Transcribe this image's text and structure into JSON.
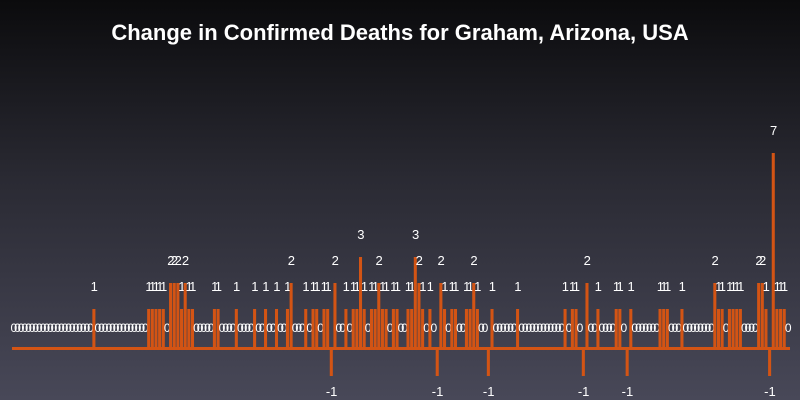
{
  "chart_data": {
    "type": "bar",
    "title": "Change in Confirmed Deaths for Graham, Arizona, USA",
    "xlabel": "",
    "ylabel": "",
    "ylim": [
      -1,
      7
    ],
    "grid": false,
    "legend": "none",
    "bar_color": "#d35414",
    "values": [
      0,
      0,
      0,
      0,
      0,
      0,
      0,
      0,
      0,
      0,
      0,
      0,
      0,
      0,
      0,
      0,
      0,
      0,
      0,
      0,
      0,
      0,
      1,
      0,
      0,
      0,
      0,
      0,
      0,
      0,
      0,
      0,
      0,
      0,
      0,
      0,
      0,
      1,
      1,
      1,
      1,
      1,
      0,
      2,
      2,
      2,
      1,
      2,
      1,
      1,
      0,
      0,
      0,
      0,
      0,
      1,
      1,
      0,
      0,
      0,
      0,
      1,
      0,
      0,
      0,
      0,
      1,
      0,
      0,
      1,
      0,
      0,
      1,
      0,
      0,
      1,
      2,
      0,
      0,
      0,
      1,
      0,
      1,
      1,
      0,
      1,
      1,
      -1,
      2,
      0,
      0,
      1,
      0,
      1,
      1,
      3,
      1,
      0,
      1,
      1,
      2,
      1,
      1,
      0,
      1,
      1,
      0,
      0,
      1,
      1,
      3,
      2,
      1,
      0,
      1,
      0,
      -1,
      2,
      1,
      0,
      1,
      1,
      0,
      0,
      1,
      1,
      2,
      1,
      0,
      0,
      -1,
      1,
      0,
      0,
      0,
      0,
      0,
      0,
      1,
      0,
      0,
      0,
      0,
      0,
      0,
      0,
      0,
      0,
      0,
      0,
      0,
      1,
      0,
      1,
      1,
      0,
      -1,
      2,
      0,
      0,
      1,
      0,
      0,
      0,
      0,
      1,
      1,
      0,
      -1,
      1,
      0,
      0,
      0,
      0,
      0,
      0,
      0,
      1,
      1,
      1,
      0,
      0,
      0,
      1,
      0,
      0,
      0,
      0,
      0,
      0,
      0,
      0,
      2,
      1,
      1,
      0,
      1,
      1,
      1,
      1,
      0,
      0,
      0,
      0,
      2,
      2,
      1,
      -1,
      7,
      1,
      1,
      1,
      0
    ]
  }
}
